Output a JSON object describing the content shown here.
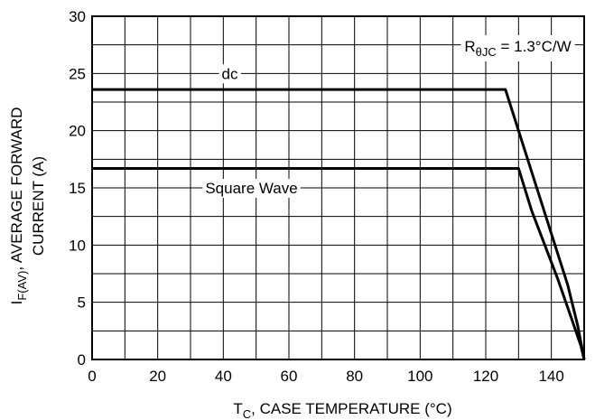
{
  "chart_data": {
    "type": "line",
    "xlabel": {
      "main": "T",
      "sub": "C",
      "rest": ", CASE TEMPERATURE (°C)"
    },
    "ylabel": {
      "line1_main": "I",
      "line1_sub": "F(AV)",
      "line1_rest": ", AVERAGE FORWARD",
      "line2": "CURRENT (A)"
    },
    "annotation": {
      "main": "R",
      "sub": "θJC",
      "rest": " = 1.3°C/W"
    },
    "xlim": [
      0,
      150
    ],
    "ylim": [
      0,
      30
    ],
    "xticks": [
      "0",
      "20",
      "40",
      "60",
      "80",
      "100",
      "120",
      "140"
    ],
    "yticks": [
      "0",
      "5",
      "10",
      "15",
      "20",
      "25",
      "30"
    ],
    "grid": true,
    "series": [
      {
        "name": "dc",
        "color": "#000000",
        "x": [
          0,
          126,
          130,
          135,
          140,
          145,
          148,
          150
        ],
        "y": [
          23.6,
          23.6,
          20.0,
          15.5,
          11.0,
          6.5,
          3.0,
          0
        ]
      },
      {
        "name": "Square Wave",
        "color": "#000000",
        "x": [
          0,
          130,
          134,
          138,
          142,
          146,
          149,
          150
        ],
        "y": [
          16.7,
          16.7,
          13.0,
          10.0,
          7.0,
          3.7,
          1.2,
          0
        ]
      }
    ]
  }
}
